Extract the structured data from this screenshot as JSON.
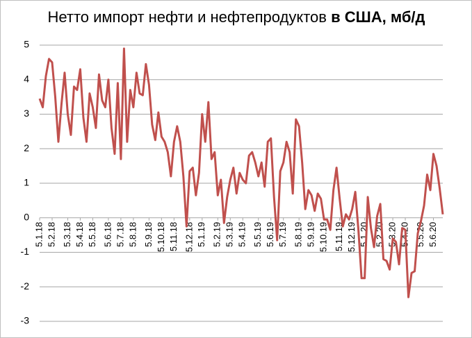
{
  "chart_data": {
    "type": "line",
    "title": "Нетто импорт нефти и нефтепродуктов",
    "title_bold": "в США, мб/д",
    "categories": [
      "5.1.18",
      null,
      null,
      null,
      "5.2.18",
      null,
      null,
      null,
      null,
      "5.3.18",
      null,
      null,
      null,
      "5.4.18",
      null,
      null,
      null,
      "5.5.18",
      null,
      null,
      null,
      null,
      "5.6.18",
      null,
      null,
      null,
      "5.7.18",
      null,
      null,
      null,
      "5.8.18",
      null,
      null,
      null,
      null,
      "5.9.18",
      null,
      null,
      null,
      "5.10.18",
      null,
      null,
      null,
      "5.11.18",
      null,
      null,
      null,
      null,
      "5.12.18",
      null,
      null,
      null,
      "5.1.19",
      null,
      null,
      null,
      null,
      "5.2.19",
      null,
      null,
      null,
      "5.3.19",
      null,
      null,
      null,
      "5.4.19",
      null,
      null,
      null,
      null,
      "5.5.19",
      null,
      null,
      null,
      "5.6.19",
      null,
      null,
      null,
      "5.7.19",
      null,
      null,
      null,
      null,
      "5.8.19",
      null,
      null,
      null,
      "5.9.19",
      null,
      null,
      null,
      "5.10.19",
      null,
      null,
      null,
      null,
      "5.11.19",
      null,
      null,
      null,
      "5.12.19",
      null,
      null,
      null,
      "5.1.20",
      null,
      null,
      null,
      null,
      "5.2.20",
      null,
      null,
      null,
      "5.3.20",
      null,
      null,
      null,
      "5.4.20",
      null,
      null,
      null,
      null,
      "5.5.20",
      null,
      null,
      null,
      "5.6.20",
      null,
      null,
      null
    ],
    "values": [
      3.45,
      3.2,
      4.1,
      4.6,
      4.5,
      3.5,
      2.2,
      3.3,
      4.2,
      3.0,
      2.4,
      3.8,
      3.7,
      4.3,
      2.9,
      2.2,
      3.6,
      3.2,
      2.6,
      4.15,
      3.4,
      3.2,
      4.0,
      2.6,
      1.85,
      3.9,
      1.7,
      4.9,
      2.2,
      3.7,
      3.2,
      4.2,
      3.6,
      3.55,
      4.45,
      3.85,
      2.7,
      2.25,
      3.05,
      2.35,
      2.2,
      1.9,
      1.2,
      2.2,
      2.65,
      2.2,
      1.2,
      -0.25,
      1.35,
      1.45,
      0.65,
      1.3,
      3.0,
      2.2,
      3.35,
      1.7,
      1.9,
      0.65,
      1.1,
      -0.15,
      0.6,
      1.1,
      1.45,
      0.7,
      1.3,
      1.1,
      1.0,
      1.8,
      1.9,
      1.6,
      1.2,
      1.6,
      0.9,
      2.2,
      2.3,
      0.6,
      -0.65,
      1.35,
      1.6,
      2.2,
      1.9,
      0.7,
      2.85,
      2.65,
      1.6,
      0.25,
      0.8,
      0.65,
      0.2,
      0.7,
      0.55,
      -0.05,
      -0.05,
      -0.35,
      0.8,
      1.45,
      0.55,
      -0.25,
      0.1,
      -0.05,
      0.25,
      0.75,
      -0.35,
      -1.75,
      -1.75,
      0.6,
      -0.3,
      -0.85,
      0.05,
      0.4,
      -1.2,
      -1.25,
      -1.5,
      -0.6,
      -0.7,
      -1.35,
      -0.3,
      -0.35,
      -2.3,
      -1.6,
      -1.55,
      -0.45,
      -0.1,
      0.35,
      1.25,
      0.8,
      1.85,
      1.5,
      0.85,
      0.1
    ],
    "color": "#c0504d",
    "ylim": [
      -3,
      5
    ],
    "yticks": [
      -3,
      -2,
      -1,
      0,
      1,
      2,
      3,
      4,
      5
    ],
    "grid": true
  }
}
